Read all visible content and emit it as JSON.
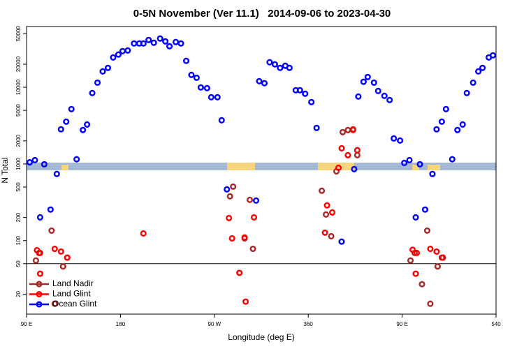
{
  "chart_data": {
    "type": "scatter",
    "title": "0-5N November (Ver 11.1)   2014-09-06 to 2023-04-30",
    "x_label": "Longitude (deg E)",
    "y_label": "N Total",
    "log_y": true,
    "xlim": [
      90,
      540
    ],
    "xticks": [
      {
        "value": 90,
        "label": "90 E"
      },
      180,
      {
        "value": 270,
        "label": "90 W"
      },
      360,
      {
        "value": 450,
        "label": "90 E"
      },
      540
    ],
    "ylim": [
      11,
      62000
    ],
    "yticks": [
      20,
      50,
      100,
      200,
      500,
      1000,
      2000,
      5000,
      10000,
      20000,
      50000
    ],
    "hline": 50,
    "legend": "bottom-left",
    "series": [
      {
        "name": "Land Nadir",
        "color": "#a52a2a",
        "x": [
          99,
          102,
          114,
          125,
          129,
          117,
          285,
          288,
          299,
          307,
          304,
          373,
          377,
          382,
          387,
          393,
          398,
          403,
          407,
          458,
          462,
          474,
          484,
          488,
          469,
          477
        ],
        "values": [
          55,
          69,
          135,
          46,
          60,
          15,
          378,
          506,
          107,
          78,
          340,
          447,
          219,
          114,
          800,
          2600,
          2770,
          2770,
          1300,
          55,
          69,
          135,
          46,
          60,
          27,
          15
        ]
      },
      {
        "name": "Land Glint",
        "color": "#ff0000",
        "x": [
          100,
          103,
          103,
          117,
          123,
          129,
          202,
          284,
          287,
          294,
          299,
          300,
          308,
          376,
          378,
          383,
          389,
          392,
          398,
          403,
          407,
          460,
          463,
          464,
          477,
          483,
          489
        ],
        "values": [
          75,
          37,
          69,
          78,
          72,
          60,
          124,
          197,
          107,
          38,
          110,
          16,
          201,
          127,
          288,
          233,
          890,
          1600,
          1300,
          2830,
          1510,
          76,
          37,
          69,
          78,
          72,
          60
        ]
      },
      {
        "name": "Ocean Glint",
        "color": "#0000ff",
        "x": [
          93,
          98,
          103,
          107,
          113,
          119,
          123,
          128,
          133,
          138,
          144,
          148,
          153,
          158,
          163,
          168,
          173,
          178,
          182,
          187,
          193,
          198,
          202,
          207,
          212,
          218,
          223,
          227,
          233,
          238,
          243,
          248,
          253,
          257,
          263,
          267,
          273,
          277,
          282,
          310,
          313,
          318,
          323,
          328,
          333,
          338,
          342,
          348,
          352,
          357,
          363,
          368,
          392,
          404,
          408,
          413,
          417,
          423,
          427,
          433,
          438,
          442,
          448,
          452,
          457,
          463,
          467,
          472,
          479,
          483,
          488,
          492,
          498,
          503,
          508,
          512,
          518,
          523,
          527,
          533,
          537
        ],
        "values": [
          1050,
          1120,
          201,
          990,
          254,
          740,
          2830,
          3560,
          5190,
          1150,
          2770,
          3270,
          8410,
          11500,
          16100,
          17900,
          24500,
          26700,
          29600,
          30200,
          37300,
          37300,
          37300,
          41400,
          38100,
          43200,
          39700,
          34300,
          38900,
          37300,
          22100,
          14500,
          13300,
          9950,
          9750,
          7410,
          7410,
          3710,
          466,
          333,
          12000,
          11300,
          21200,
          19900,
          17900,
          19100,
          17900,
          9140,
          9140,
          8240,
          6410,
          2950,
          97,
          855,
          7570,
          11800,
          13600,
          11500,
          8950,
          7730,
          6820,
          2150,
          2020,
          1030,
          1120,
          201,
          990,
          254,
          740,
          2830,
          3560,
          5190,
          1150,
          2770,
          3270,
          8410,
          11500,
          16100,
          17900,
          24500,
          26100
        ]
      }
    ]
  }
}
